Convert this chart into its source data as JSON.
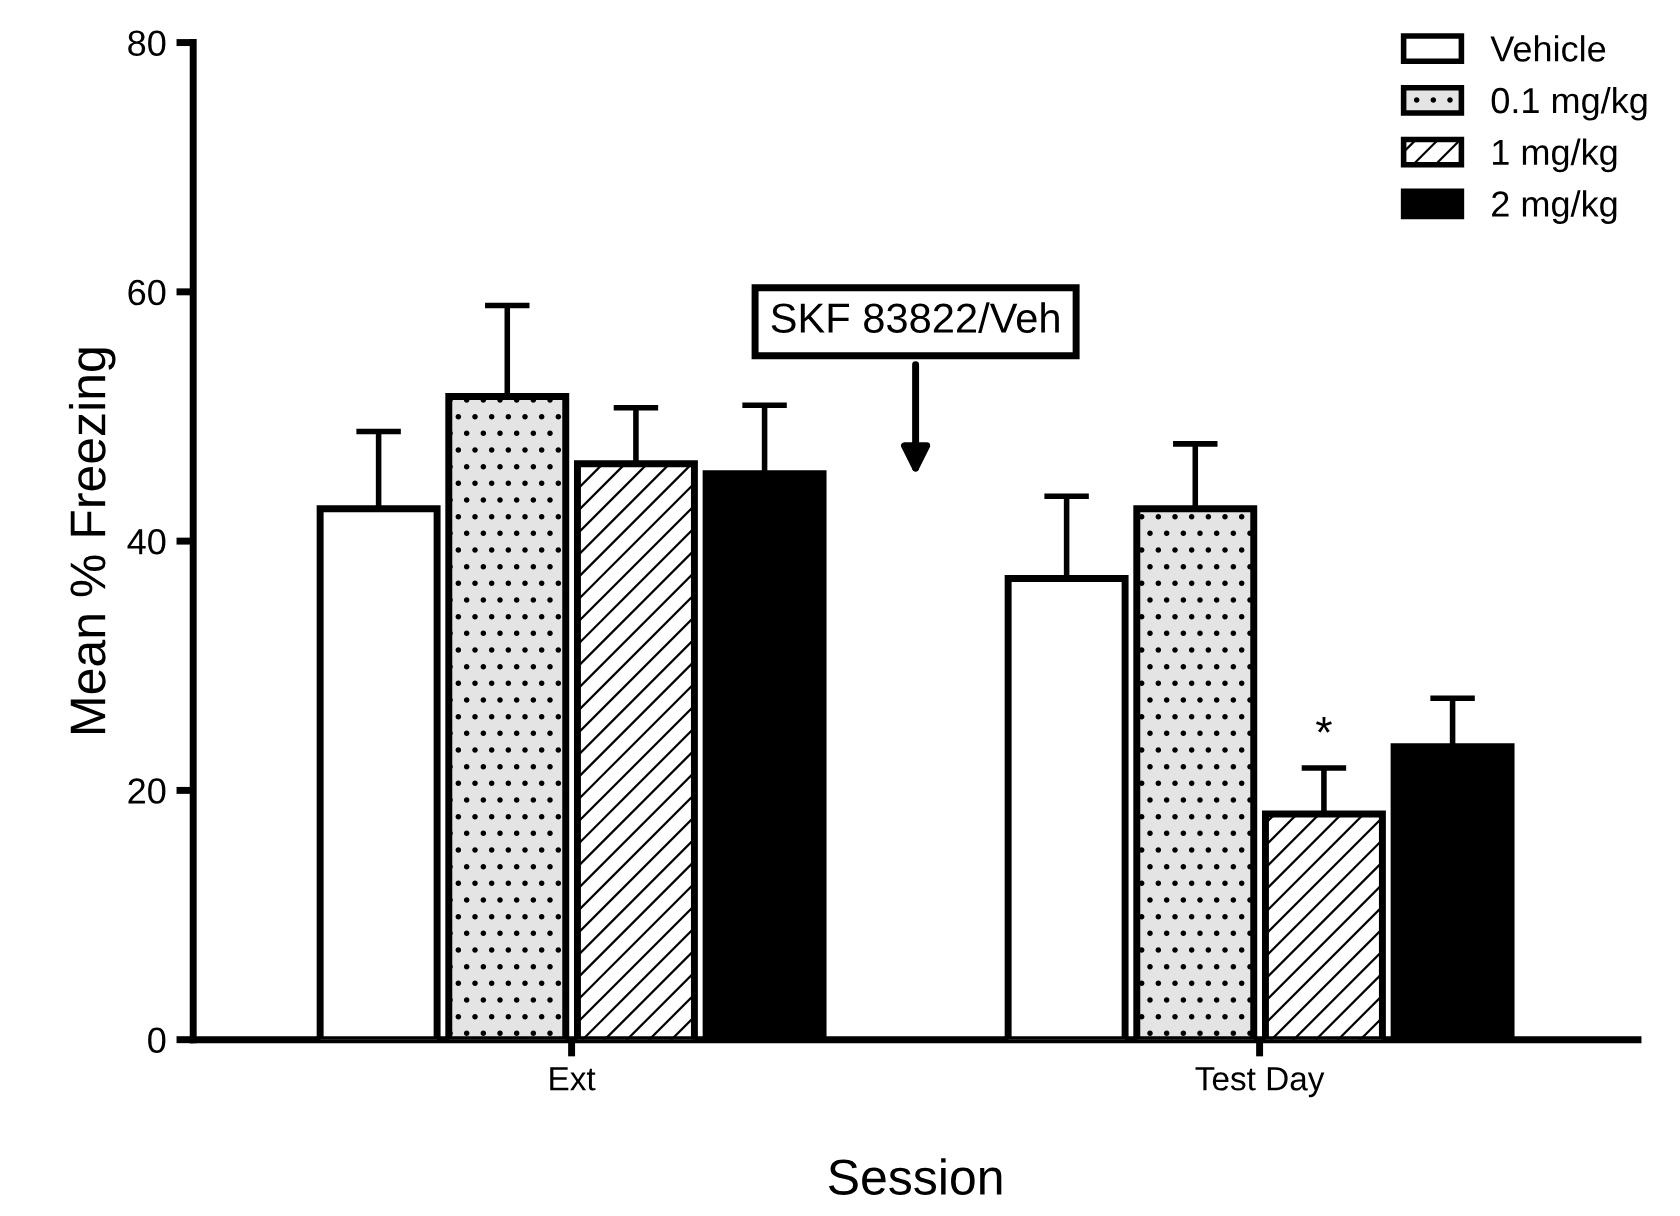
{
  "chart_data": {
    "type": "bar",
    "xlabel": "Session",
    "ylabel": "Mean % Freezing",
    "categories": [
      "Ext",
      "Test Day"
    ],
    "series": [
      {
        "name": "Vehicle",
        "color": "#ffffff",
        "values": [
          42.6,
          37.0
        ],
        "errors": [
          [
            42.6,
            48.8
          ],
          [
            37.0,
            43.6
          ]
        ]
      },
      {
        "name": "0.1 mg/kg",
        "color": "#e4e4e4",
        "values": [
          51.6,
          42.6
        ],
        "errors": [
          [
            51.6,
            58.9
          ],
          [
            42.6,
            47.8
          ]
        ]
      },
      {
        "name": "1 mg/kg",
        "color": "#ffffff",
        "values": [
          46.2,
          18.1
        ],
        "errors": [
          [
            46.2,
            50.7
          ],
          [
            18.1,
            21.8
          ]
        ]
      },
      {
        "name": "2 mg/kg",
        "color": "#000000",
        "values": [
          45.4,
          23.5
        ],
        "errors": [
          [
            45.4,
            50.9
          ],
          [
            23.5,
            27.4
          ]
        ]
      }
    ],
    "ylim": [
      0,
      80
    ],
    "yticks": [
      0,
      20,
      40,
      60,
      80
    ],
    "grid": false,
    "legend": "top right",
    "annotations": [
      "SKF 83822/Veh",
      {
        "text": "*",
        "x": "Test Day",
        "y": 21.8
      }
    ]
  }
}
